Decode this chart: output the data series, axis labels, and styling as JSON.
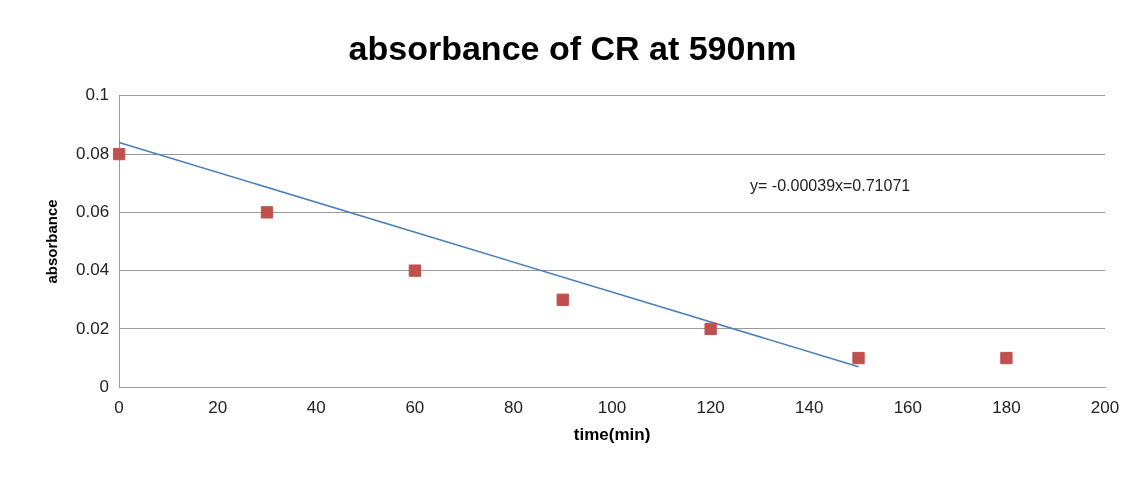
{
  "chart_data": {
    "type": "scatter",
    "title": "absorbance of CR at 590nm",
    "xlabel": "time(min)",
    "ylabel": "absorbance",
    "x": [
      0,
      30,
      60,
      90,
      120,
      150,
      180
    ],
    "series": [
      {
        "color": "#c0504d",
        "marker": "square",
        "values": [
          0.08,
          0.06,
          0.04,
          0.03,
          0.02,
          0.01,
          0.01
        ]
      },
      {
        "type": "line",
        "color": "#4a7ebb",
        "marker": "none",
        "x": [
          0,
          150
        ],
        "values": [
          0.084,
          0.007
        ]
      }
    ],
    "xlim": [
      0,
      200
    ],
    "xticks": [
      0,
      20,
      40,
      60,
      80,
      100,
      120,
      140,
      160,
      180,
      200
    ],
    "ylim": [
      0,
      0.1
    ],
    "yticks": [
      0,
      0.02,
      0.04,
      0.06,
      0.08,
      0.1
    ],
    "grid": "y",
    "legend": false,
    "annotations": [
      "y= -0.00039x=0.71071"
    ]
  }
}
